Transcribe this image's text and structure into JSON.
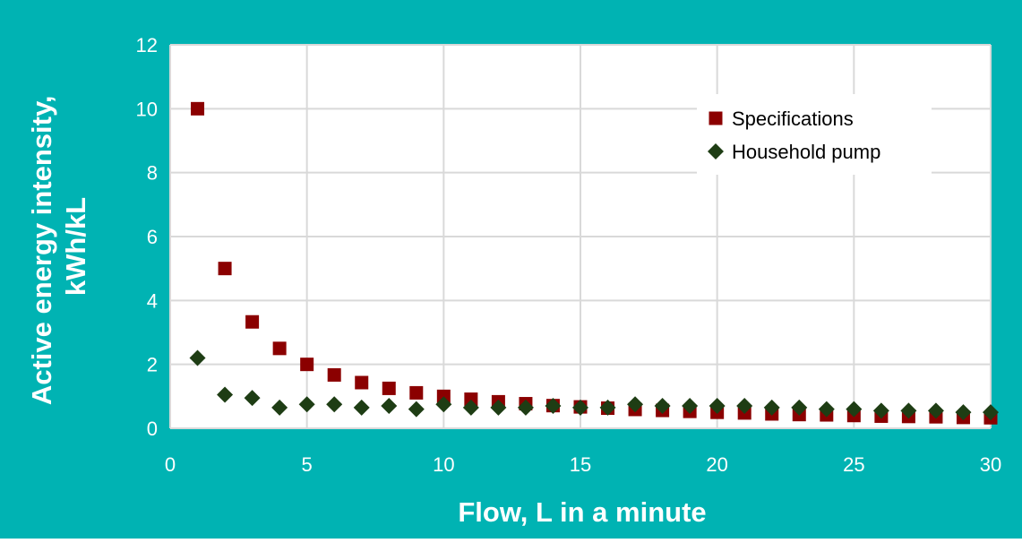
{
  "chart_data": {
    "type": "scatter",
    "title": "",
    "xlabel": "Flow, L in a minute",
    "ylabel": [
      "Active energy intensity,",
      "kWh/kL"
    ],
    "xlim": [
      0,
      30
    ],
    "ylim": [
      0,
      12
    ],
    "xticks": [
      0,
      5,
      10,
      15,
      20,
      25,
      30
    ],
    "yticks": [
      0,
      2,
      4,
      6,
      8,
      10,
      12
    ],
    "grid": true,
    "legend_position": "top-right",
    "colors": {
      "frame": "#00b3b3",
      "plot_bg": "#ffffff",
      "grid": "#d9d9d9",
      "text": "#ffffff",
      "specifications": "#8b0000",
      "household": "#1e3d14"
    },
    "series": [
      {
        "name": "Specifications",
        "marker": "square",
        "x": [
          1,
          2,
          3,
          4,
          5,
          6,
          7,
          8,
          9,
          10,
          11,
          12,
          13,
          14,
          15,
          16,
          17,
          18,
          19,
          20,
          21,
          22,
          23,
          24,
          25,
          26,
          27,
          28,
          29,
          30
        ],
        "y": [
          10.0,
          5.0,
          3.33,
          2.5,
          2.0,
          1.67,
          1.43,
          1.25,
          1.11,
          1.0,
          0.91,
          0.83,
          0.77,
          0.71,
          0.67,
          0.63,
          0.59,
          0.56,
          0.53,
          0.5,
          0.48,
          0.45,
          0.43,
          0.42,
          0.4,
          0.38,
          0.37,
          0.36,
          0.34,
          0.33
        ]
      },
      {
        "name": "Household pump",
        "marker": "diamond",
        "x": [
          1,
          2,
          3,
          4,
          5,
          6,
          7,
          8,
          9,
          10,
          11,
          12,
          13,
          14,
          15,
          16,
          17,
          18,
          19,
          20,
          21,
          22,
          23,
          24,
          25,
          26,
          27,
          28,
          29,
          30
        ],
        "y": [
          2.2,
          1.05,
          0.95,
          0.65,
          0.75,
          0.75,
          0.65,
          0.7,
          0.6,
          0.75,
          0.65,
          0.65,
          0.65,
          0.7,
          0.65,
          0.65,
          0.75,
          0.7,
          0.7,
          0.7,
          0.7,
          0.65,
          0.65,
          0.6,
          0.6,
          0.55,
          0.55,
          0.55,
          0.5,
          0.5
        ]
      }
    ]
  }
}
